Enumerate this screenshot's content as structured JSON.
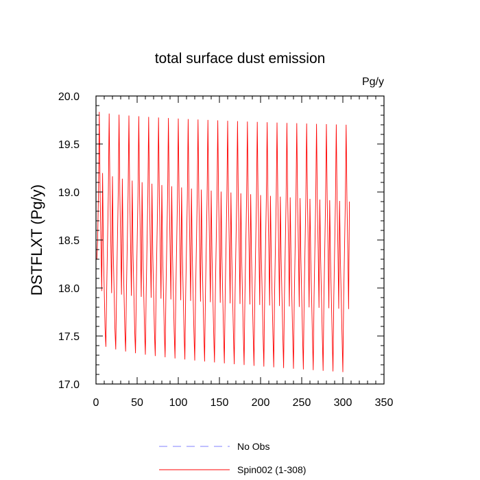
{
  "chart_data": {
    "type": "line",
    "title": "total surface dust emission",
    "units_label": "Pg/y",
    "xlabel": "",
    "ylabel": "DSTFLXT  (Pg/y)",
    "xlim": [
      0,
      350
    ],
    "ylim": [
      17.0,
      20.0
    ],
    "x_ticks": [
      0,
      50,
      100,
      150,
      200,
      250,
      300,
      350
    ],
    "x_tick_labels": [
      "0",
      "50",
      "100",
      "150",
      "200",
      "250",
      "300",
      "350"
    ],
    "y_ticks": [
      17.0,
      17.5,
      18.0,
      18.5,
      19.0,
      19.5,
      20.0
    ],
    "y_tick_labels": [
      "17.0",
      "17.5",
      "18.0",
      "18.5",
      "19.0",
      "19.5",
      "20.0"
    ],
    "grid": false,
    "legend_position": "bottom-center",
    "series": [
      {
        "name": "No Obs",
        "color": "#8080ff",
        "dash": "dashed",
        "x": [],
        "y": []
      },
      {
        "name": "Spin002 (1-308)",
        "color": "#ff0000",
        "dash": "solid",
        "n_months": 308,
        "cycle_pattern_month_values": [
          18.0,
          18.5,
          19.0,
          19.7,
          19.0,
          18.5,
          17.9,
          18.9,
          18.4,
          18.0,
          17.6,
          17.3
        ],
        "first_year_annual_max": 19.85,
        "last_year_annual_max": 19.7,
        "first_year_annual_min": 17.45,
        "last_year_annual_min": 17.12,
        "first_year_secondary_peak": 19.25,
        "last_year_secondary_peak": 18.9,
        "first_year_secondary_trough": 18.0,
        "last_year_secondary_trough": 17.78
      }
    ]
  },
  "legend": {
    "items": [
      {
        "label": "No Obs",
        "color": "#8080ff",
        "style": "dashed"
      },
      {
        "label": "Spin002 (1-308)",
        "color": "#ff0000",
        "style": "solid"
      }
    ]
  }
}
